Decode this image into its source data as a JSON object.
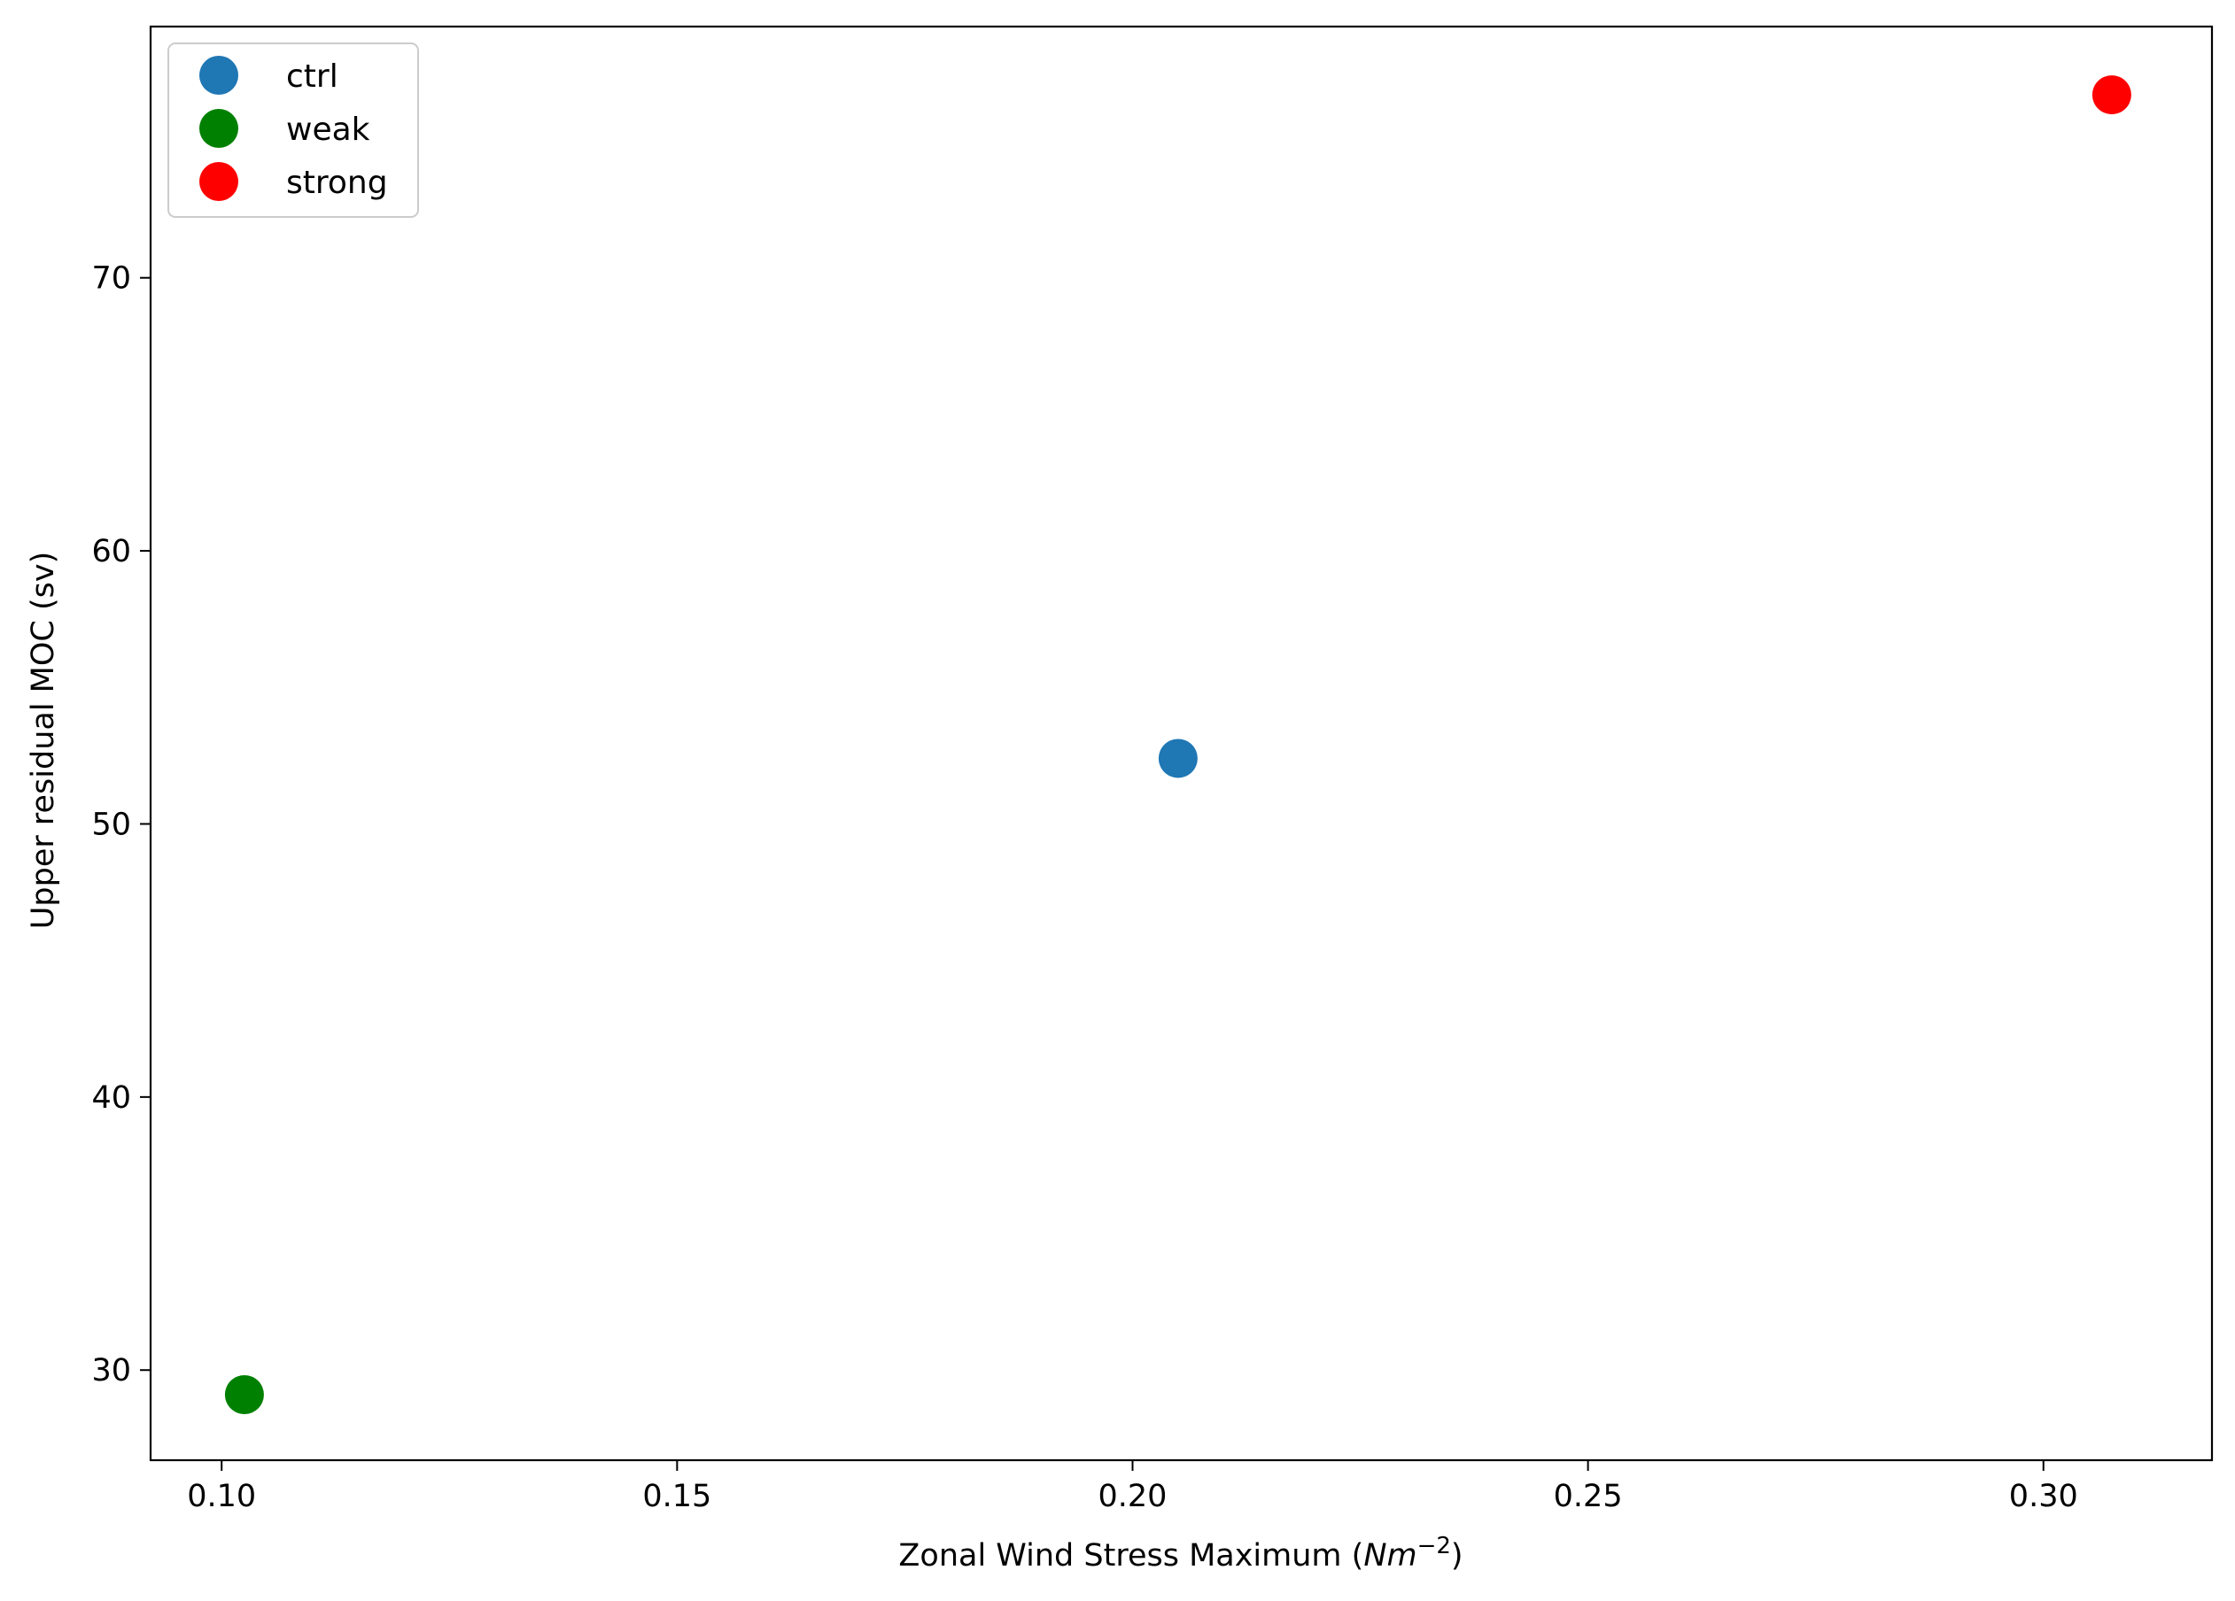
{
  "chart_data": {
    "type": "scatter",
    "xlabel_text": "Zonal Wind Stress Maximum (",
    "xlabel_unit": "Nm",
    "xlabel_exp": "−2",
    "xlabel_close": ")",
    "ylabel": "Upper residual MOC (sv)",
    "xlim": [
      0.0922,
      0.3185
    ],
    "ylim": [
      26.7,
      79.2
    ],
    "x_ticks": [
      0.1,
      0.15,
      0.2,
      0.25,
      0.3
    ],
    "x_tick_labels": [
      "0.10",
      "0.15",
      "0.20",
      "0.25",
      "0.30"
    ],
    "y_ticks": [
      30,
      40,
      50,
      60,
      70
    ],
    "y_tick_labels": [
      "30",
      "40",
      "50",
      "60",
      "70"
    ],
    "grid": false,
    "legend_position": "upper-left",
    "series": [
      {
        "name": "ctrl",
        "color": "#1f77b4",
        "x": [
          0.205
        ],
        "y": [
          52.4
        ]
      },
      {
        "name": "weak",
        "color": "#008000",
        "x": [
          0.1025
        ],
        "y": [
          29.1
        ]
      },
      {
        "name": "strong",
        "color": "#ff0000",
        "x": [
          0.3075
        ],
        "y": [
          76.7
        ]
      }
    ]
  }
}
